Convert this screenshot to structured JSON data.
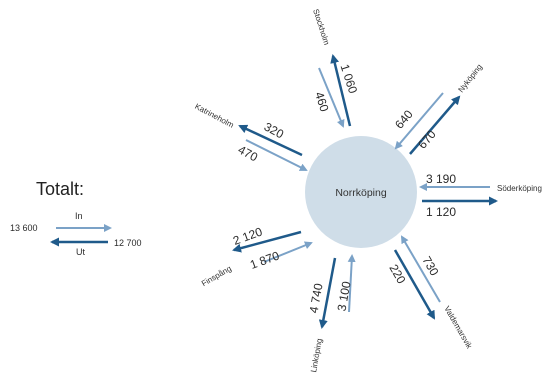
{
  "center": {
    "label": "Norrköping"
  },
  "legend": {
    "title": "Totalt:",
    "in_label": "In",
    "out_label": "Ut",
    "in_total": "13 600",
    "out_total": "12 700"
  },
  "colors": {
    "in_arrow": "#7ba2c7",
    "out_arrow": "#1f5a8a",
    "circle": "#cfdde8"
  },
  "flows": [
    {
      "city": "Stockholm",
      "in": "460",
      "out": "1 060"
    },
    {
      "city": "Nyköping",
      "in": "640",
      "out": "670"
    },
    {
      "city": "Söderköping",
      "in": "3 190",
      "out": "1 120"
    },
    {
      "city": "Valdemarsvik",
      "in": "730",
      "out": "220"
    },
    {
      "city": "Linköping",
      "in": "3 100",
      "out": "4 740"
    },
    {
      "city": "Finspång",
      "in": "1 870",
      "out": "2 120"
    },
    {
      "city": "Katrineholm",
      "in": "470",
      "out": "320"
    }
  ]
}
